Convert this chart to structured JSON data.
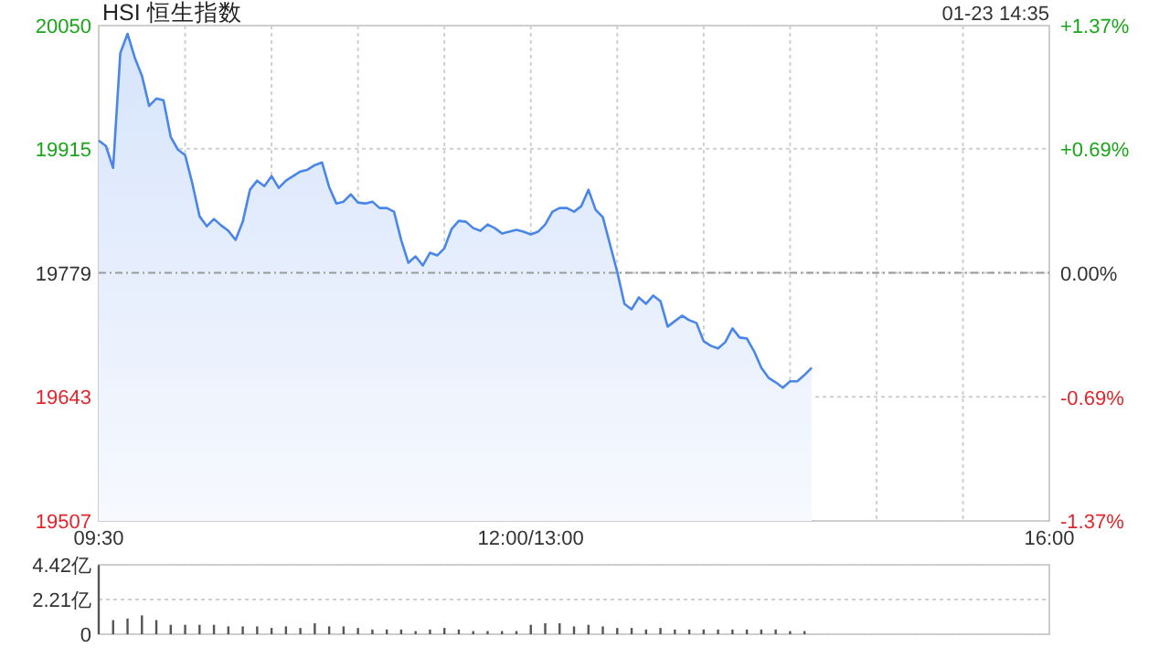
{
  "chart_data": [
    {
      "type": "area",
      "title": "HSI 恒生指数",
      "annotations": [
        "01-23 14:35"
      ],
      "categories": [
        "09:30",
        null,
        null,
        null,
        null,
        null,
        null,
        null,
        null,
        null,
        null,
        null,
        null,
        null,
        null,
        null,
        null,
        null,
        null,
        null,
        null,
        null,
        null,
        null,
        null,
        null,
        null,
        null,
        null,
        null,
        null,
        null,
        null,
        null,
        null,
        null,
        null,
        null,
        null,
        null,
        null,
        null,
        null,
        null,
        null,
        null,
        null,
        null,
        null,
        null,
        null,
        null,
        null,
        null,
        null,
        null,
        null,
        null,
        null,
        null,
        "12:00/13:00",
        null,
        null,
        null,
        null,
        null,
        null,
        null,
        null,
        null,
        null,
        null,
        null,
        null,
        null,
        null,
        null,
        null,
        null,
        null,
        null,
        null,
        null,
        null,
        null,
        null,
        null,
        null,
        null,
        null,
        null,
        null,
        null,
        null,
        null,
        null,
        null,
        null,
        null,
        null,
        null,
        null,
        null,
        null,
        null,
        null,
        null,
        null,
        null,
        null,
        null,
        null,
        null,
        null,
        null,
        null,
        null,
        null,
        null,
        null,
        null,
        null,
        null,
        null,
        null,
        null,
        null,
        null,
        null,
        null,
        null,
        null,
        "16:00"
      ],
      "series": [
        {
          "color": "#4a86e8",
          "values": [
            19924,
            19918,
            19894,
            20020,
            20041,
            20015,
            19995,
            19962,
            19970,
            19968,
            19928,
            19914,
            19908,
            19877,
            19841,
            19830,
            19838,
            19831,
            19825,
            19815,
            19835,
            19870,
            19880,
            19874,
            19885,
            19872,
            19880,
            19885,
            19890,
            19892,
            19897,
            19900,
            19873,
            19855,
            19857,
            19865,
            19856,
            19855,
            19857,
            19850,
            19850,
            19846,
            19815,
            19790,
            19797,
            19787,
            19801,
            19798,
            19806,
            19827,
            19836,
            19835,
            19828,
            19825,
            19832,
            19828,
            19822,
            19824,
            19826,
            19824,
            19821,
            19824,
            19832,
            19846,
            19850,
            19850,
            19846,
            19852,
            19870,
            19848,
            19840,
            19810,
            19780,
            19745,
            19739,
            19752,
            19745,
            19754,
            19748,
            19720,
            19726,
            19732,
            19727,
            19724,
            19704,
            19699,
            19696,
            19703,
            19718,
            19708,
            19707,
            19693,
            19675,
            19664,
            19659,
            19653,
            19660,
            19660,
            19667,
            19675,
            null,
            null,
            null,
            null,
            null,
            null,
            null,
            null,
            null,
            null,
            null,
            null,
            null,
            null,
            null,
            null,
            null,
            null,
            null,
            null,
            null,
            null,
            null,
            null,
            null,
            null,
            null,
            null,
            null,
            null,
            null,
            null,
            null
          ]
        }
      ],
      "ylim": [
        19507,
        20050
      ],
      "yticks": [
        19507,
        19643,
        19779,
        19915,
        20050
      ],
      "y2lim": [
        -1.37,
        1.37
      ],
      "y2ticks": [
        {
          "value": -1.37,
          "label": "-1.37%"
        },
        {
          "value": -0.69,
          "label": "-0.69%"
        },
        {
          "value": 0,
          "label": "0.00%"
        },
        {
          "value": 0.69,
          "label": "+0.69%"
        },
        {
          "value": 1.37,
          "label": "+1.37%"
        }
      ],
      "ref_lines": [
        {
          "axis": "y",
          "value": 19779,
          "color": "#999999",
          "line_style": "dashed"
        }
      ],
      "grid": true
    },
    {
      "type": "bar",
      "categories": [
        null,
        null,
        null,
        null,
        null,
        null,
        null,
        null,
        null,
        null,
        null,
        null,
        null,
        null,
        null,
        null,
        null,
        null,
        null,
        null,
        null,
        null,
        null,
        null,
        null,
        null,
        null,
        null,
        null,
        null,
        null,
        null,
        null,
        null,
        null,
        null,
        null,
        null,
        null,
        null,
        null,
        null,
        null,
        null,
        null,
        null,
        null,
        null,
        null,
        null,
        null,
        null,
        null,
        null,
        null,
        null,
        null,
        null,
        null,
        null,
        null,
        null,
        null,
        null,
        null,
        null,
        null
      ],
      "series": [
        {
          "color": "#555555",
          "values": [
            4.4,
            0.9,
            1.0,
            1.2,
            0.9,
            0.6,
            0.6,
            0.6,
            0.6,
            0.5,
            0.5,
            0.5,
            0.4,
            0.5,
            0.4,
            0.7,
            0.5,
            0.5,
            0.4,
            0.3,
            0.3,
            0.3,
            0.2,
            0.3,
            0.4,
            0.3,
            0.2,
            0.2,
            0.2,
            0.2,
            0.6,
            0.7,
            0.7,
            0.5,
            0.6,
            0.5,
            0.4,
            0.4,
            0.3,
            0.4,
            0.3,
            0.3,
            0.3,
            0.3,
            0.3,
            0.3,
            0.3,
            0.3,
            0.2,
            0.2,
            null,
            null,
            null,
            null,
            null,
            null,
            null,
            null,
            null,
            null,
            null,
            null,
            null,
            null,
            null,
            null,
            null
          ]
        }
      ],
      "ylim": [
        0,
        4.42
      ],
      "yticks": [
        0,
        {
          "value": 2.21,
          "label": "2.21亿"
        },
        {
          "value": 4.42,
          "label": "4.42亿"
        }
      ],
      "grid": "y",
      "tick_labels": "y"
    }
  ]
}
